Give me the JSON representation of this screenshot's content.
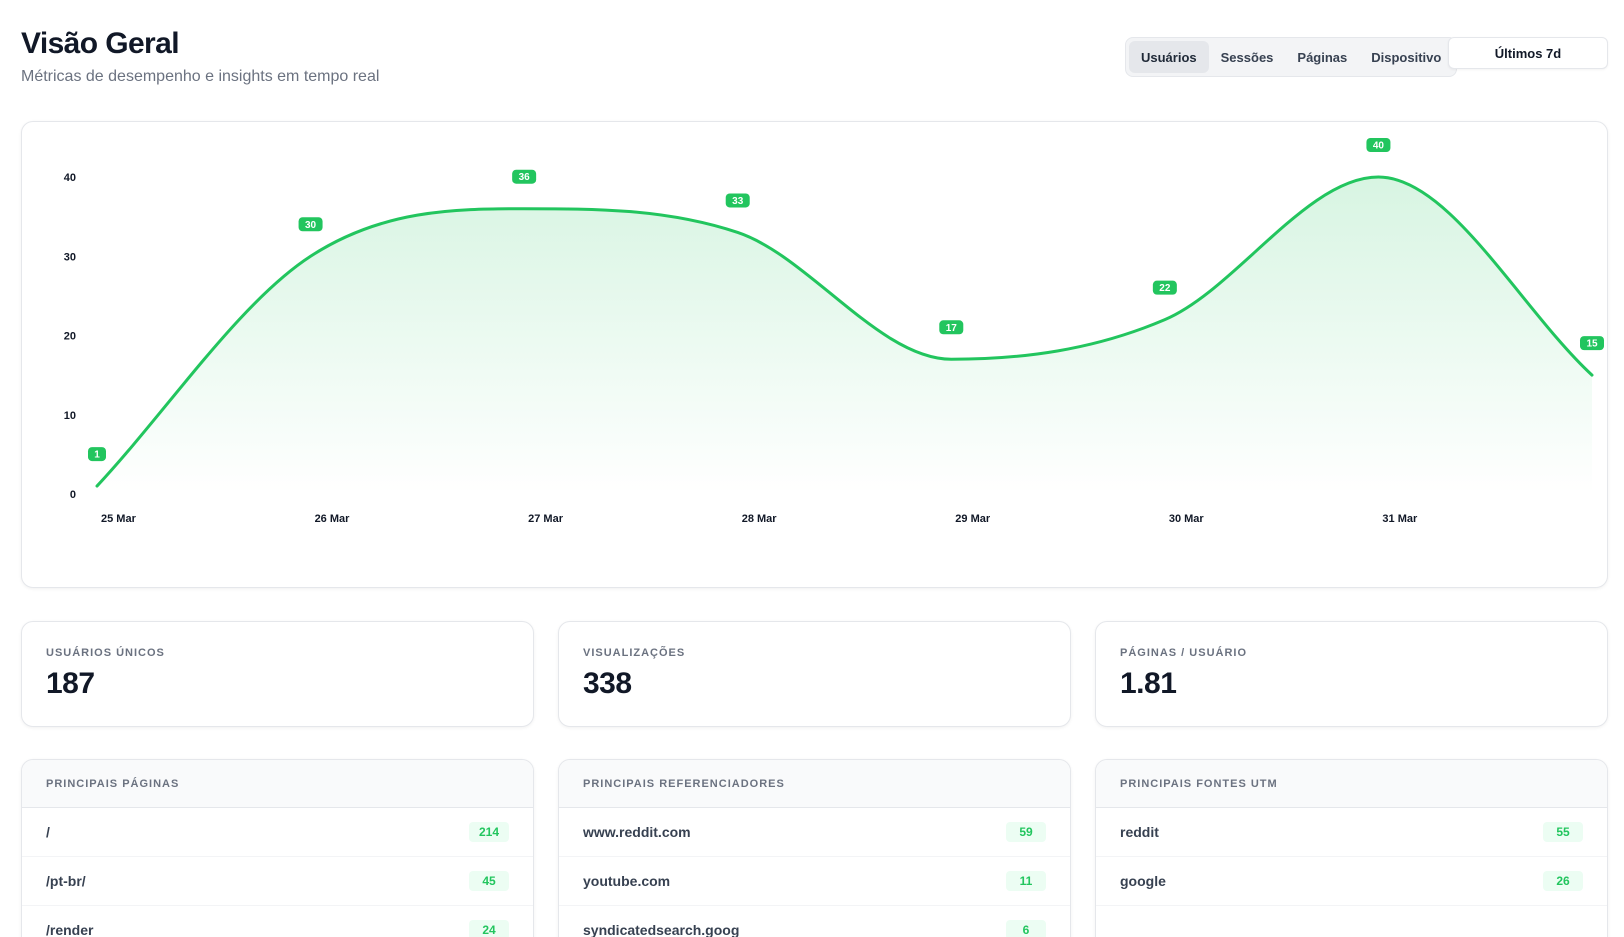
{
  "header": {
    "title": "Visão Geral",
    "subtitle": "Métricas de desempenho e insights em tempo real"
  },
  "tabs": [
    {
      "label": "Usuários",
      "active": true
    },
    {
      "label": "Sessões",
      "active": false
    },
    {
      "label": "Páginas",
      "active": false
    },
    {
      "label": "Dispositivo",
      "active": false
    }
  ],
  "range_button": {
    "label": "Últimos 7d"
  },
  "colors": {
    "accent": "#22c55e",
    "accent_light": "#ecfdf3",
    "text": "#111827",
    "muted": "#6b7280"
  },
  "chart_data": {
    "type": "area",
    "x": [
      "25 Mar",
      "26 Mar",
      "27 Mar",
      "28 Mar",
      "29 Mar",
      "30 Mar",
      "31 Mar",
      ""
    ],
    "x_tick_labels": [
      "25 Mar",
      "26 Mar",
      "27 Mar",
      "28 Mar",
      "29 Mar",
      "30 Mar",
      "31 Mar"
    ],
    "values": [
      1,
      30,
      36,
      33,
      17,
      22,
      40,
      15
    ],
    "y_ticks": [
      0,
      10,
      20,
      30,
      40
    ],
    "ylim": [
      0,
      40
    ],
    "grid": false,
    "data_labels": true,
    "line_color": "#22c55e"
  },
  "stats": [
    {
      "label": "USUÁRIOS ÚNICOS",
      "value": "187"
    },
    {
      "label": "VISUALIZAÇÕES",
      "value": "338"
    },
    {
      "label": "PÁGINAS / USUÁRIO",
      "value": "1.81"
    }
  ],
  "lists": [
    {
      "title": "PRINCIPAIS PÁGINAS",
      "rows": [
        {
          "label": "/",
          "count": "214"
        },
        {
          "label": "/pt-br/",
          "count": "45"
        },
        {
          "label": "/render",
          "count": "24"
        }
      ]
    },
    {
      "title": "PRINCIPAIS REFERENCIADORES",
      "rows": [
        {
          "label": "www.reddit.com",
          "count": "59"
        },
        {
          "label": "youtube.com",
          "count": "11"
        },
        {
          "label": "syndicatedsearch.goog",
          "count": "6"
        }
      ]
    },
    {
      "title": "PRINCIPAIS FONTES UTM",
      "rows": [
        {
          "label": "reddit",
          "count": "55"
        },
        {
          "label": "google",
          "count": "26"
        }
      ]
    }
  ]
}
